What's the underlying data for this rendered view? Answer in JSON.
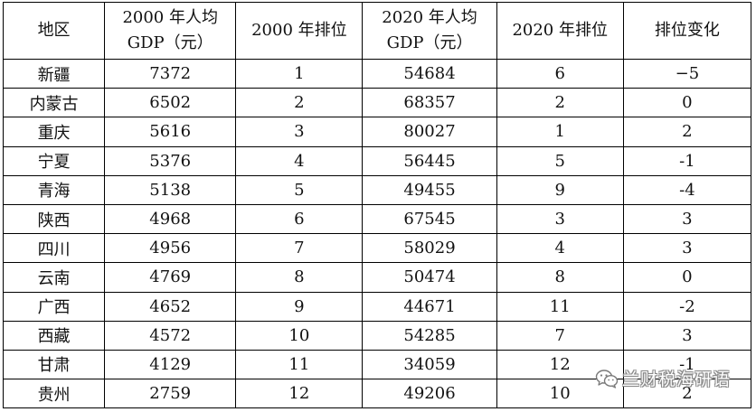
{
  "table": {
    "headers": {
      "region": "地区",
      "gdp2000": [
        "2000 年人均",
        "GDP（元）"
      ],
      "rank2000": "2000 年排位",
      "gdp2020": [
        "2020 年人均",
        "GDP（元）"
      ],
      "rank2020": "2020 年排位",
      "change": "排位变化"
    },
    "rows": [
      {
        "region": "新疆",
        "gdp2000": "7372",
        "rank2000": "1",
        "gdp2020": "54684",
        "rank2020": "6",
        "change": "−5"
      },
      {
        "region": "内蒙古",
        "gdp2000": "6502",
        "rank2000": "2",
        "gdp2020": "68357",
        "rank2020": "2",
        "change": "0"
      },
      {
        "region": "重庆",
        "gdp2000": "5616",
        "rank2000": "3",
        "gdp2020": "80027",
        "rank2020": "1",
        "change": "2"
      },
      {
        "region": "宁夏",
        "gdp2000": "5376",
        "rank2000": "4",
        "gdp2020": "56445",
        "rank2020": "5",
        "change": "-1"
      },
      {
        "region": "青海",
        "gdp2000": "5138",
        "rank2000": "5",
        "gdp2020": "49455",
        "rank2020": "9",
        "change": "-4"
      },
      {
        "region": "陕西",
        "gdp2000": "4968",
        "rank2000": "6",
        "gdp2020": "67545",
        "rank2020": "3",
        "change": "3"
      },
      {
        "region": "四川",
        "gdp2000": "4956",
        "rank2000": "7",
        "gdp2020": "58029",
        "rank2020": "4",
        "change": "3"
      },
      {
        "region": "云南",
        "gdp2000": "4769",
        "rank2000": "8",
        "gdp2020": "50474",
        "rank2020": "8",
        "change": "0"
      },
      {
        "region": "广西",
        "gdp2000": "4652",
        "rank2000": "9",
        "gdp2020": "44671",
        "rank2020": "11",
        "change": "-2"
      },
      {
        "region": "西藏",
        "gdp2000": "4572",
        "rank2000": "10",
        "gdp2020": "54285",
        "rank2020": "7",
        "change": "3"
      },
      {
        "region": "甘肃",
        "gdp2000": "4129",
        "rank2000": "11",
        "gdp2020": "34059",
        "rank2020": "12",
        "change": "-1"
      },
      {
        "region": "贵州",
        "gdp2000": "2759",
        "rank2000": "12",
        "gdp2020": "49206",
        "rank2020": "10",
        "change": "2"
      }
    ]
  },
  "watermark": {
    "text": "兰财税海研语",
    "icon": "wechat-icon"
  }
}
